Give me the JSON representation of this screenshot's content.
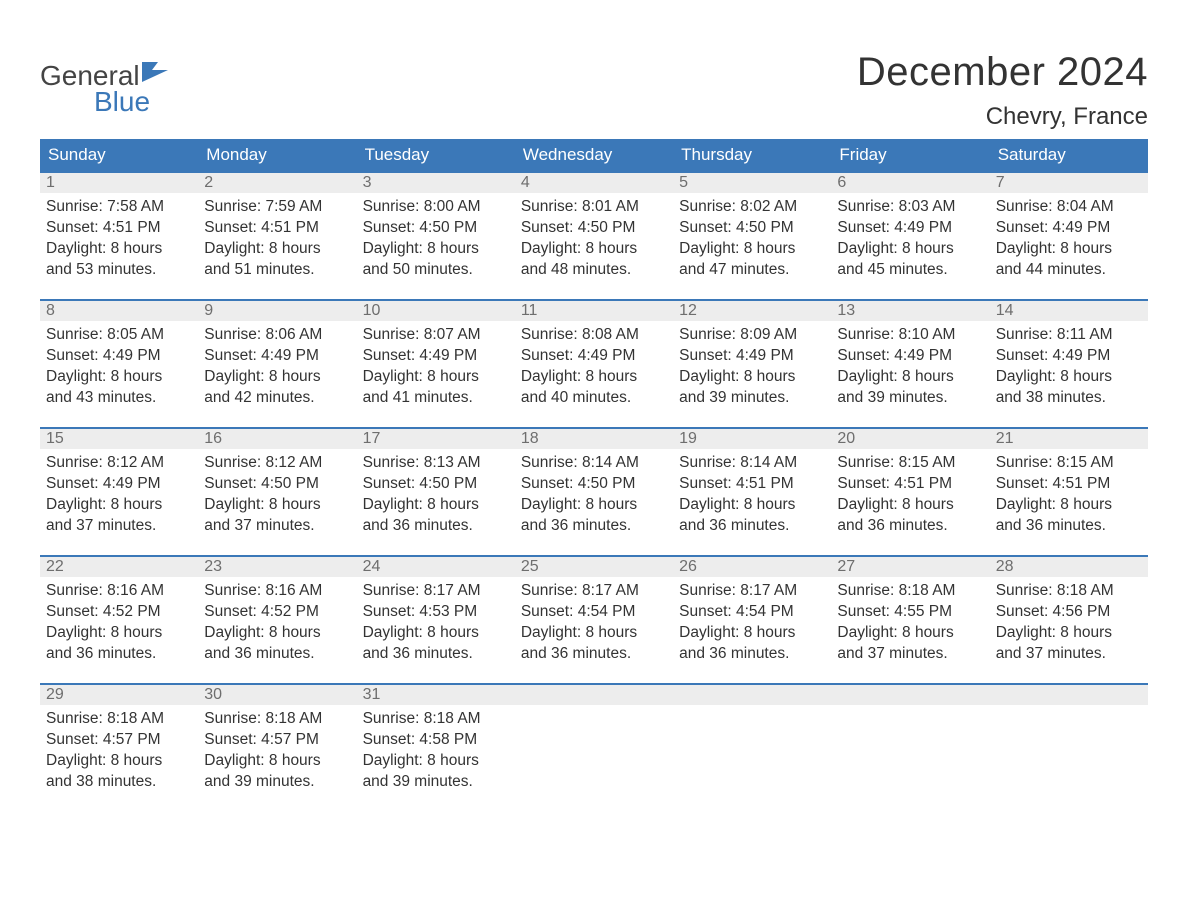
{
  "brand": {
    "word1": "General",
    "word2": "Blue",
    "word1_color": "#444444",
    "word2_color": "#3b78b8",
    "flag_color": "#3b78b8"
  },
  "title": "December 2024",
  "location": "Chevry, France",
  "colors": {
    "header_bg": "#3b78b8",
    "header_text": "#ffffff",
    "daynum_bg": "#ededed",
    "daynum_text": "#6e6e6e",
    "daynum_border": "#3b78b8",
    "body_text": "#333333",
    "page_bg": "#ffffff"
  },
  "fonts": {
    "title_size_pt": 30,
    "location_size_pt": 18,
    "header_cell_size_pt": 13,
    "body_size_pt": 12
  },
  "weekdays": [
    "Sunday",
    "Monday",
    "Tuesday",
    "Wednesday",
    "Thursday",
    "Friday",
    "Saturday"
  ],
  "weeks": [
    [
      {
        "n": "1",
        "sr": "Sunrise: 7:58 AM",
        "ss": "Sunset: 4:51 PM",
        "d1": "Daylight: 8 hours",
        "d2": "and 53 minutes."
      },
      {
        "n": "2",
        "sr": "Sunrise: 7:59 AM",
        "ss": "Sunset: 4:51 PM",
        "d1": "Daylight: 8 hours",
        "d2": "and 51 minutes."
      },
      {
        "n": "3",
        "sr": "Sunrise: 8:00 AM",
        "ss": "Sunset: 4:50 PM",
        "d1": "Daylight: 8 hours",
        "d2": "and 50 minutes."
      },
      {
        "n": "4",
        "sr": "Sunrise: 8:01 AM",
        "ss": "Sunset: 4:50 PM",
        "d1": "Daylight: 8 hours",
        "d2": "and 48 minutes."
      },
      {
        "n": "5",
        "sr": "Sunrise: 8:02 AM",
        "ss": "Sunset: 4:50 PM",
        "d1": "Daylight: 8 hours",
        "d2": "and 47 minutes."
      },
      {
        "n": "6",
        "sr": "Sunrise: 8:03 AM",
        "ss": "Sunset: 4:49 PM",
        "d1": "Daylight: 8 hours",
        "d2": "and 45 minutes."
      },
      {
        "n": "7",
        "sr": "Sunrise: 8:04 AM",
        "ss": "Sunset: 4:49 PM",
        "d1": "Daylight: 8 hours",
        "d2": "and 44 minutes."
      }
    ],
    [
      {
        "n": "8",
        "sr": "Sunrise: 8:05 AM",
        "ss": "Sunset: 4:49 PM",
        "d1": "Daylight: 8 hours",
        "d2": "and 43 minutes."
      },
      {
        "n": "9",
        "sr": "Sunrise: 8:06 AM",
        "ss": "Sunset: 4:49 PM",
        "d1": "Daylight: 8 hours",
        "d2": "and 42 minutes."
      },
      {
        "n": "10",
        "sr": "Sunrise: 8:07 AM",
        "ss": "Sunset: 4:49 PM",
        "d1": "Daylight: 8 hours",
        "d2": "and 41 minutes."
      },
      {
        "n": "11",
        "sr": "Sunrise: 8:08 AM",
        "ss": "Sunset: 4:49 PM",
        "d1": "Daylight: 8 hours",
        "d2": "and 40 minutes."
      },
      {
        "n": "12",
        "sr": "Sunrise: 8:09 AM",
        "ss": "Sunset: 4:49 PM",
        "d1": "Daylight: 8 hours",
        "d2": "and 39 minutes."
      },
      {
        "n": "13",
        "sr": "Sunrise: 8:10 AM",
        "ss": "Sunset: 4:49 PM",
        "d1": "Daylight: 8 hours",
        "d2": "and 39 minutes."
      },
      {
        "n": "14",
        "sr": "Sunrise: 8:11 AM",
        "ss": "Sunset: 4:49 PM",
        "d1": "Daylight: 8 hours",
        "d2": "and 38 minutes."
      }
    ],
    [
      {
        "n": "15",
        "sr": "Sunrise: 8:12 AM",
        "ss": "Sunset: 4:49 PM",
        "d1": "Daylight: 8 hours",
        "d2": "and 37 minutes."
      },
      {
        "n": "16",
        "sr": "Sunrise: 8:12 AM",
        "ss": "Sunset: 4:50 PM",
        "d1": "Daylight: 8 hours",
        "d2": "and 37 minutes."
      },
      {
        "n": "17",
        "sr": "Sunrise: 8:13 AM",
        "ss": "Sunset: 4:50 PM",
        "d1": "Daylight: 8 hours",
        "d2": "and 36 minutes."
      },
      {
        "n": "18",
        "sr": "Sunrise: 8:14 AM",
        "ss": "Sunset: 4:50 PM",
        "d1": "Daylight: 8 hours",
        "d2": "and 36 minutes."
      },
      {
        "n": "19",
        "sr": "Sunrise: 8:14 AM",
        "ss": "Sunset: 4:51 PM",
        "d1": "Daylight: 8 hours",
        "d2": "and 36 minutes."
      },
      {
        "n": "20",
        "sr": "Sunrise: 8:15 AM",
        "ss": "Sunset: 4:51 PM",
        "d1": "Daylight: 8 hours",
        "d2": "and 36 minutes."
      },
      {
        "n": "21",
        "sr": "Sunrise: 8:15 AM",
        "ss": "Sunset: 4:51 PM",
        "d1": "Daylight: 8 hours",
        "d2": "and 36 minutes."
      }
    ],
    [
      {
        "n": "22",
        "sr": "Sunrise: 8:16 AM",
        "ss": "Sunset: 4:52 PM",
        "d1": "Daylight: 8 hours",
        "d2": "and 36 minutes."
      },
      {
        "n": "23",
        "sr": "Sunrise: 8:16 AM",
        "ss": "Sunset: 4:52 PM",
        "d1": "Daylight: 8 hours",
        "d2": "and 36 minutes."
      },
      {
        "n": "24",
        "sr": "Sunrise: 8:17 AM",
        "ss": "Sunset: 4:53 PM",
        "d1": "Daylight: 8 hours",
        "d2": "and 36 minutes."
      },
      {
        "n": "25",
        "sr": "Sunrise: 8:17 AM",
        "ss": "Sunset: 4:54 PM",
        "d1": "Daylight: 8 hours",
        "d2": "and 36 minutes."
      },
      {
        "n": "26",
        "sr": "Sunrise: 8:17 AM",
        "ss": "Sunset: 4:54 PM",
        "d1": "Daylight: 8 hours",
        "d2": "and 36 minutes."
      },
      {
        "n": "27",
        "sr": "Sunrise: 8:18 AM",
        "ss": "Sunset: 4:55 PM",
        "d1": "Daylight: 8 hours",
        "d2": "and 37 minutes."
      },
      {
        "n": "28",
        "sr": "Sunrise: 8:18 AM",
        "ss": "Sunset: 4:56 PM",
        "d1": "Daylight: 8 hours",
        "d2": "and 37 minutes."
      }
    ],
    [
      {
        "n": "29",
        "sr": "Sunrise: 8:18 AM",
        "ss": "Sunset: 4:57 PM",
        "d1": "Daylight: 8 hours",
        "d2": "and 38 minutes."
      },
      {
        "n": "30",
        "sr": "Sunrise: 8:18 AM",
        "ss": "Sunset: 4:57 PM",
        "d1": "Daylight: 8 hours",
        "d2": "and 39 minutes."
      },
      {
        "n": "31",
        "sr": "Sunrise: 8:18 AM",
        "ss": "Sunset: 4:58 PM",
        "d1": "Daylight: 8 hours",
        "d2": "and 39 minutes."
      },
      null,
      null,
      null,
      null
    ]
  ]
}
